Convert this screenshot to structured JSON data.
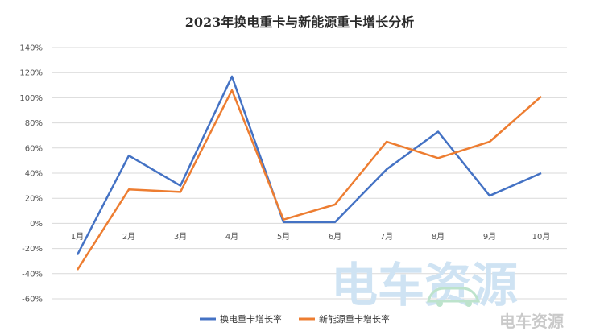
{
  "chart_data": {
    "type": "line",
    "title": "2023年换电重卡与新能源重卡增长分析",
    "categories": [
      "1月",
      "2月",
      "3月",
      "4月",
      "5月",
      "6月",
      "7月",
      "8月",
      "9月",
      "10月"
    ],
    "series": [
      {
        "name": "换电重卡增长率",
        "color": "#4472c4",
        "values": [
          -25,
          54,
          30,
          117,
          1,
          1,
          43,
          73,
          22,
          40
        ]
      },
      {
        "name": "新能源重卡增长率",
        "color": "#ed7d31",
        "values": [
          -37,
          27,
          25,
          106,
          3,
          15,
          65,
          52,
          65,
          101
        ]
      }
    ],
    "ylim": [
      -60,
      140
    ],
    "yticks": [
      "140%",
      "120%",
      "100%",
      "80%",
      "60%",
      "40%",
      "20%",
      "0%",
      "-20%",
      "-40%",
      "-60%"
    ],
    "grid": true,
    "legend": "bottom"
  },
  "watermark": {
    "main_text": "电车资源",
    "small_text": "电车资源",
    "main_color": "#cfe3f3",
    "car_color": "#bde3cc",
    "small_color": "#c9c9c9"
  }
}
